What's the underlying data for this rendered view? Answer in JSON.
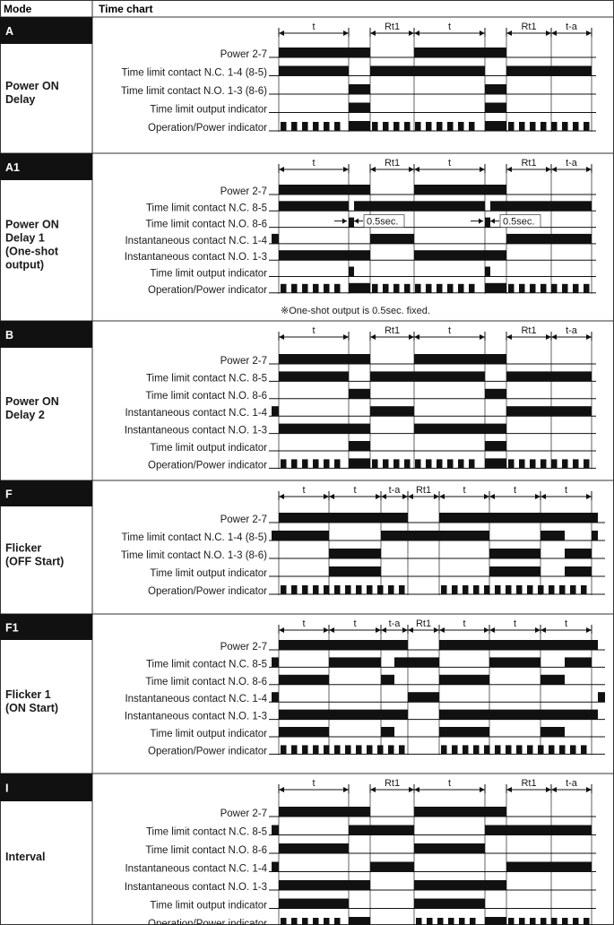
{
  "table": {
    "header_mode": "Mode",
    "header_chart": "Time chart"
  },
  "chart_data": {
    "type": "timing-diagram",
    "modes": [
      {
        "tag": "A",
        "name": [
          "Power ON",
          "Delay"
        ],
        "periods": [
          "t",
          "Rt1",
          "t",
          "Rt1",
          "t-a"
        ],
        "signals": [
          {
            "label": "Power 2-7",
            "high": [
              [
                0,
                4
              ],
              [
                5,
                8
              ]
            ]
          },
          {
            "label": "Time limit contact N.C. 1-4 (8-5)",
            "high": [
              [
                0,
                3
              ],
              [
                4,
                7
              ],
              [
                8,
                9
              ]
            ]
          },
          {
            "label": "Time limit contact N.O. 1-3 (8-6)",
            "high": [
              [
                3,
                4
              ],
              [
                7,
                8
              ]
            ]
          },
          {
            "label": "Time limit output indicator",
            "high": [
              [
                3,
                4
              ],
              [
                7,
                8
              ]
            ]
          },
          {
            "label": "Operation/Power indicator",
            "high": [
              [
                3,
                4
              ],
              [
                7,
                8
              ]
            ],
            "blink": [
              [
                0,
                3
              ],
              [
                4,
                7
              ],
              [
                8,
                9
              ]
            ]
          }
        ]
      },
      {
        "tag": "A1",
        "name": [
          "Power ON",
          "Delay 1",
          "(One-shot",
          "output)"
        ],
        "periods": [
          "t",
          "Rt1",
          "t",
          "Rt1",
          "t-a"
        ],
        "oneshot_label": "0.5sec.",
        "note": "※One-shot output is 0.5sec. fixed.",
        "signals": [
          {
            "label": "Power 2-7",
            "high": [
              [
                0,
                4
              ],
              [
                5,
                8
              ]
            ]
          },
          {
            "label": "Time limit contact N.C. 8-5",
            "high": [
              [
                0,
                3
              ],
              [
                3.2,
                7
              ],
              [
                7.2,
                9
              ]
            ]
          },
          {
            "label": "Time limit contact N.O. 8-6",
            "high": [
              [
                3,
                3.2
              ],
              [
                7,
                7.2
              ]
            ]
          },
          {
            "label": "Instantaneous contact N.C. 1-4",
            "high": [
              [
                -0.1,
                0
              ],
              [
                4,
                5
              ],
              [
                8,
                9
              ]
            ]
          },
          {
            "label": "Instantaneous contact N.O. 1-3",
            "high": [
              [
                0,
                4
              ],
              [
                5,
                8
              ]
            ]
          },
          {
            "label": "Time limit output indicator",
            "high": [
              [
                3,
                3.2
              ],
              [
                7,
                7.2
              ]
            ]
          },
          {
            "label": "Operation/Power indicator",
            "high": [
              [
                3,
                4
              ],
              [
                7,
                8
              ]
            ],
            "blink": [
              [
                0,
                3
              ],
              [
                4,
                7
              ],
              [
                8,
                9
              ]
            ]
          }
        ]
      },
      {
        "tag": "B",
        "name": [
          "Power ON",
          "Delay 2"
        ],
        "periods": [
          "t",
          "Rt1",
          "t",
          "Rt1",
          "t-a"
        ],
        "signals": [
          {
            "label": "Power 2-7",
            "high": [
              [
                0,
                4
              ],
              [
                5,
                8
              ]
            ]
          },
          {
            "label": "Time limit contact N.C. 8-5",
            "high": [
              [
                0,
                3
              ],
              [
                4,
                7
              ],
              [
                8,
                9
              ]
            ]
          },
          {
            "label": "Time limit contact N.O. 8-6",
            "high": [
              [
                3,
                4
              ],
              [
                7,
                8
              ]
            ]
          },
          {
            "label": "Instantaneous contact N.C. 1-4",
            "high": [
              [
                -0.1,
                0
              ],
              [
                4,
                5
              ],
              [
                8,
                9
              ]
            ]
          },
          {
            "label": "Instantaneous contact N.O. 1-3",
            "high": [
              [
                0,
                4
              ],
              [
                5,
                8
              ]
            ]
          },
          {
            "label": "Time limit output indicator",
            "high": [
              [
                3,
                4
              ],
              [
                7,
                8
              ]
            ]
          },
          {
            "label": "Operation/Power indicator",
            "high": [
              [
                3,
                4
              ],
              [
                7,
                8
              ]
            ],
            "blink": [
              [
                0,
                3
              ],
              [
                4,
                7
              ],
              [
                8,
                9
              ]
            ]
          }
        ]
      },
      {
        "tag": "F",
        "name": [
          "Flicker",
          "(OFF Start)"
        ],
        "periods": [
          "t",
          "t",
          "t-a",
          "Rt1",
          "t",
          "t",
          "t"
        ],
        "signals": [
          {
            "label": "Power 2-7",
            "high": [
              [
                0,
                4
              ],
              [
                5,
                9.3
              ]
            ]
          },
          {
            "label": "Time limit contact N.C. 1-4 (8-5)",
            "high": [
              [
                -0.1,
                1
              ],
              [
                2,
                5
              ],
              [
                5,
                6
              ],
              [
                7,
                8
              ],
              [
                9,
                9.3
              ]
            ]
          },
          {
            "label": "Time limit contact N.O. 1-3 (8-6)",
            "high": [
              [
                1,
                2
              ],
              [
                6,
                7
              ],
              [
                8,
                9
              ]
            ]
          },
          {
            "label": "Time limit output indicator",
            "high": [
              [
                1,
                2
              ],
              [
                6,
                7
              ],
              [
                8,
                9
              ]
            ]
          },
          {
            "label": "Operation/Power indicator",
            "high": [],
            "blink": [
              [
                0,
                4
              ],
              [
                5,
                9.3
              ]
            ]
          }
        ]
      },
      {
        "tag": "F1",
        "name": [
          "Flicker 1",
          "(ON Start)"
        ],
        "periods": [
          "t",
          "t",
          "t-a",
          "Rt1",
          "t",
          "t",
          "t"
        ],
        "signals": [
          {
            "label": "Power 2-7",
            "high": [
              [
                0,
                4
              ],
              [
                5,
                9.3
              ]
            ]
          },
          {
            "label": "Time limit contact N.C. 8-5",
            "high": [
              [
                -0.1,
                0
              ],
              [
                1,
                2
              ],
              [
                3,
                5
              ],
              [
                6,
                7
              ],
              [
                8,
                9
              ]
            ]
          },
          {
            "label": "Time limit contact N.O. 8-6",
            "high": [
              [
                0,
                1
              ],
              [
                2,
                3
              ],
              [
                5,
                6
              ],
              [
                7,
                8
              ]
            ]
          },
          {
            "label": "Instantaneous contact N.C. 1-4",
            "high": [
              [
                -0.1,
                0
              ],
              [
                4,
                5
              ],
              [
                9.3,
                9.5
              ]
            ]
          },
          {
            "label": "Instantaneous contact N.O. 1-3",
            "high": [
              [
                0,
                4
              ],
              [
                5,
                9.3
              ]
            ]
          },
          {
            "label": "Time limit output indicator",
            "high": [
              [
                0,
                1
              ],
              [
                2,
                3
              ],
              [
                5,
                6
              ],
              [
                7,
                8
              ]
            ]
          },
          {
            "label": "Operation/Power indicator",
            "high": [],
            "blink": [
              [
                0,
                4
              ],
              [
                5,
                9.3
              ]
            ]
          }
        ]
      },
      {
        "tag": "I",
        "name": [
          "Interval"
        ],
        "periods": [
          "t",
          "Rt1",
          "t",
          "Rt1",
          "t-a"
        ],
        "signals": [
          {
            "label": "Power 2-7",
            "high": [
              [
                0,
                4
              ],
              [
                5,
                8
              ]
            ]
          },
          {
            "label": "Time limit contact N.C. 8-5",
            "high": [
              [
                -0.1,
                0
              ],
              [
                3,
                5
              ],
              [
                7,
                9
              ]
            ]
          },
          {
            "label": "Time limit contact N.O. 8-6",
            "high": [
              [
                0,
                3
              ],
              [
                5,
                7
              ]
            ]
          },
          {
            "label": "Instantaneous contact N.C. 1-4",
            "high": [
              [
                -0.1,
                0
              ],
              [
                4,
                5
              ],
              [
                8,
                9
              ]
            ]
          },
          {
            "label": "Instantaneous contact N.O. 1-3",
            "high": [
              [
                0,
                4
              ],
              [
                5,
                8
              ]
            ]
          },
          {
            "label": "Time limit output indicator",
            "high": [
              [
                0,
                3
              ],
              [
                5,
                7
              ]
            ]
          },
          {
            "label": "Operation/Power indicator",
            "high": [
              [
                3,
                4
              ],
              [
                7,
                8
              ]
            ],
            "blink": [
              [
                0,
                3
              ],
              [
                5,
                7
              ],
              [
                8,
                9
              ]
            ]
          }
        ]
      }
    ]
  }
}
